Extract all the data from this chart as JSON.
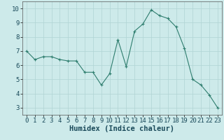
{
  "x": [
    0,
    1,
    2,
    3,
    4,
    5,
    6,
    7,
    8,
    9,
    10,
    11,
    12,
    13,
    14,
    15,
    16,
    17,
    18,
    19,
    20,
    21,
    22,
    23
  ],
  "y": [
    7.0,
    6.4,
    6.6,
    6.6,
    6.4,
    6.3,
    6.3,
    5.5,
    5.5,
    4.6,
    5.4,
    7.8,
    5.9,
    8.4,
    8.9,
    9.9,
    9.5,
    9.3,
    8.7,
    7.2,
    5.0,
    4.6,
    3.9,
    3.0
  ],
  "line_color": "#2e7d6e",
  "marker": "+",
  "marker_size": 3,
  "bg_color": "#cdeaea",
  "grid_color": "#b0d4d4",
  "xlabel": "Humidex (Indice chaleur)",
  "xlim": [
    -0.5,
    23.5
  ],
  "ylim": [
    2.5,
    10.5
  ],
  "yticks": [
    3,
    4,
    5,
    6,
    7,
    8,
    9,
    10
  ],
  "xticks": [
    0,
    1,
    2,
    3,
    4,
    5,
    6,
    7,
    8,
    9,
    10,
    11,
    12,
    13,
    14,
    15,
    16,
    17,
    18,
    19,
    20,
    21,
    22,
    23
  ],
  "xlabel_fontsize": 7.5,
  "tick_fontsize": 6.5
}
